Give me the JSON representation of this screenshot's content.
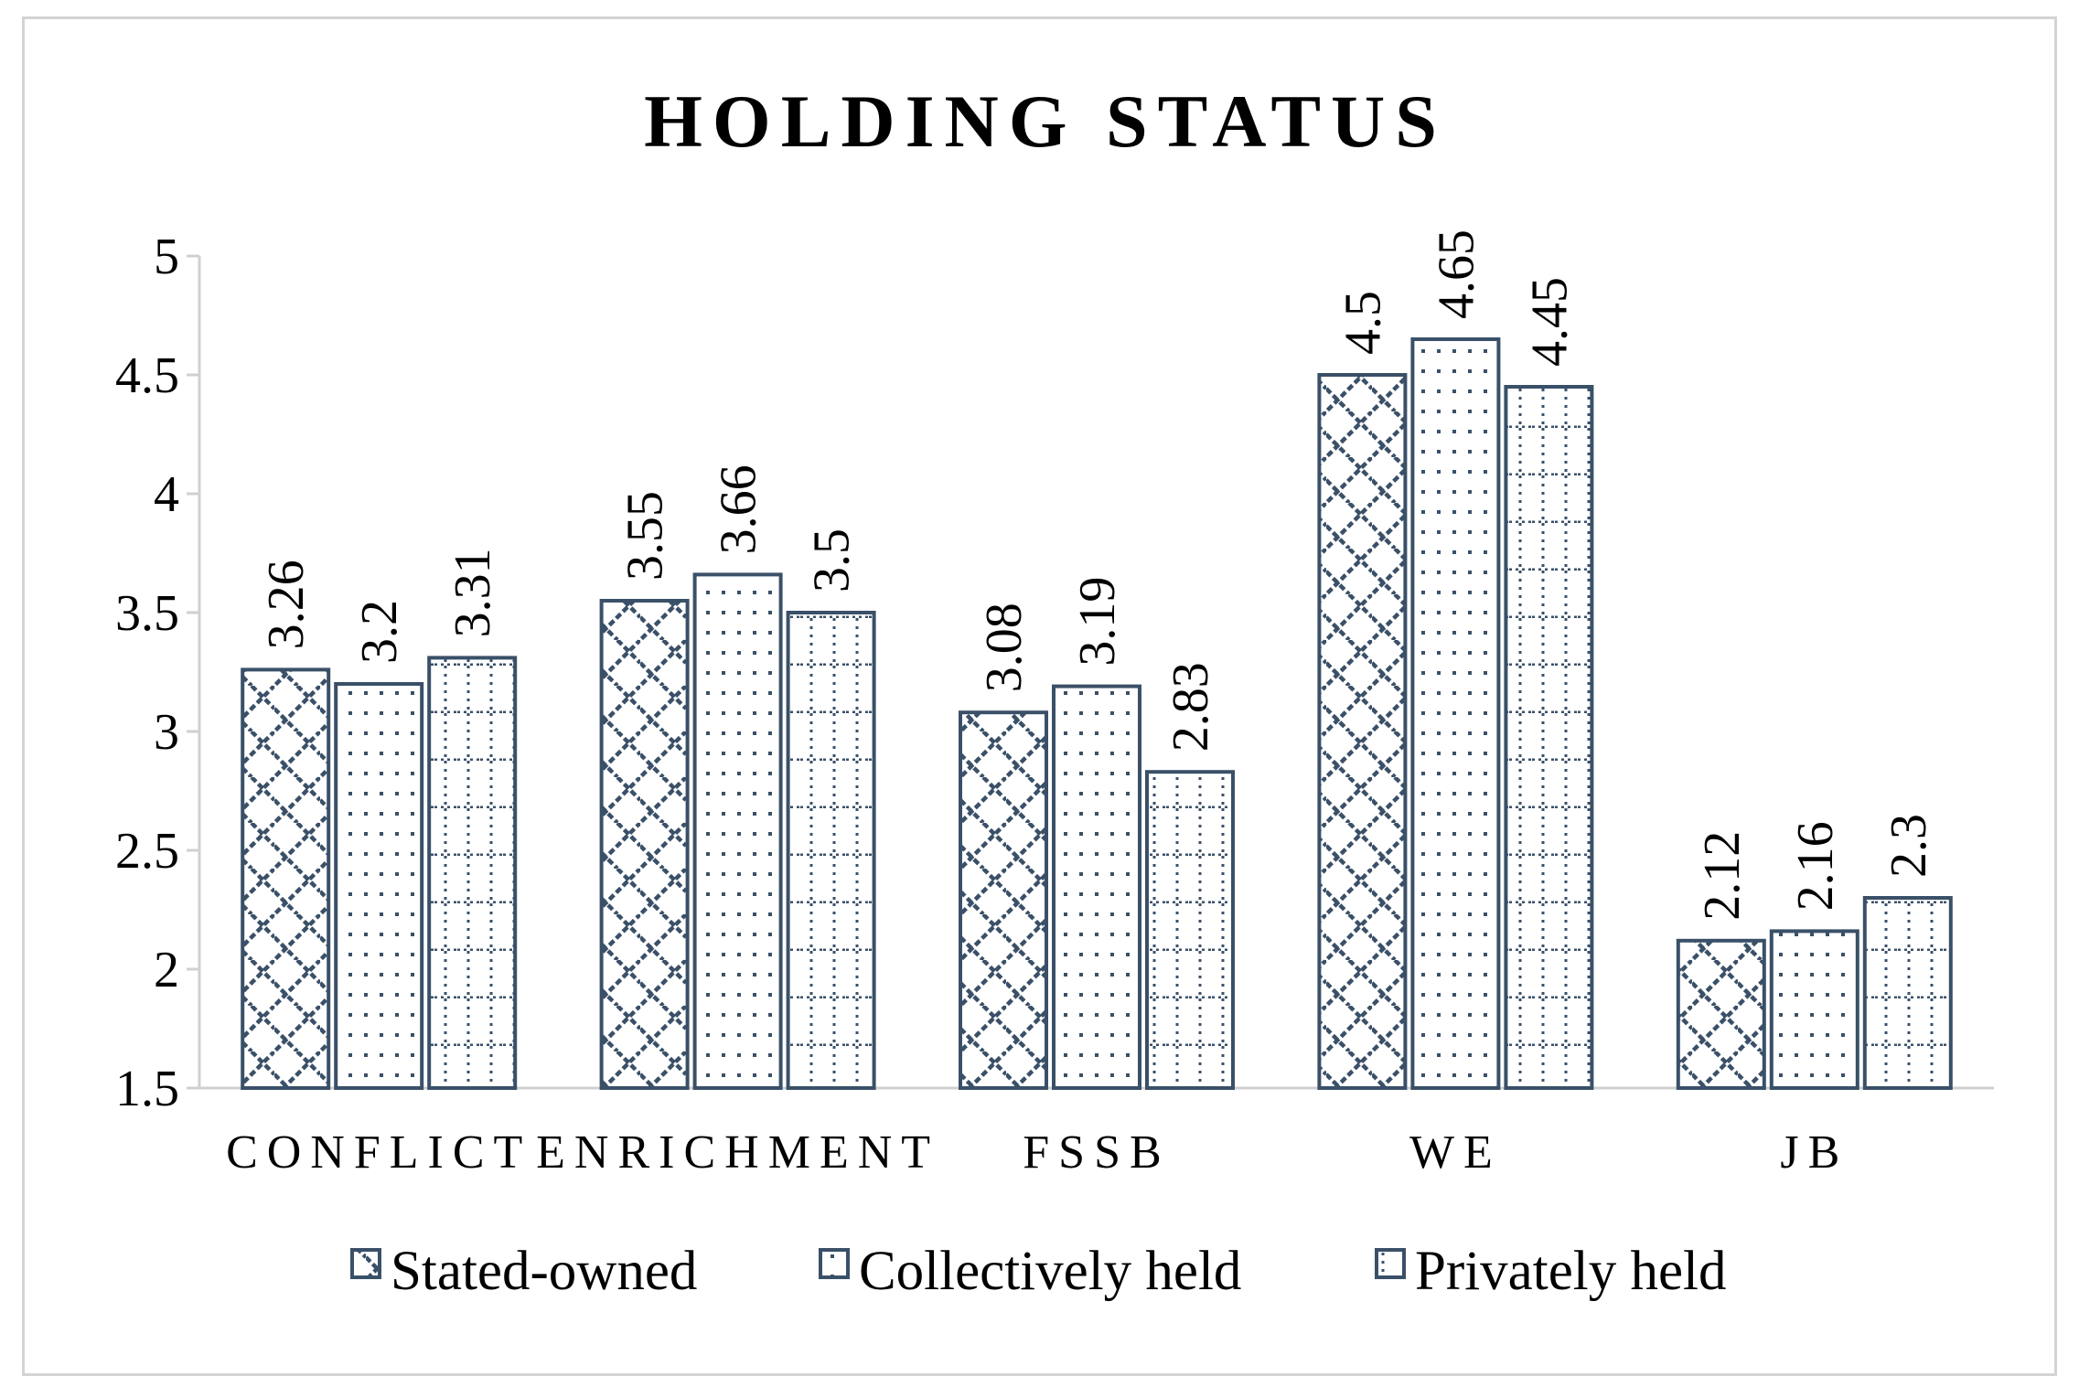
{
  "chart_data": {
    "type": "bar",
    "title": "HOLDING STATUS",
    "categories": [
      "CONFLICT",
      "ENRICHMENT",
      "FSSB",
      "WE",
      "JB"
    ],
    "series": [
      {
        "name": "Stated-owned",
        "values": [
          3.26,
          3.55,
          3.08,
          4.5,
          2.12
        ],
        "pattern": "diagonal-brick"
      },
      {
        "name": "Collectively held",
        "values": [
          3.2,
          3.66,
          3.19,
          4.65,
          2.16
        ],
        "pattern": "dotted"
      },
      {
        "name": "Privately held",
        "values": [
          3.31,
          3.5,
          2.83,
          4.45,
          2.3
        ],
        "pattern": "dotted-grid"
      }
    ],
    "ylim": [
      1.5,
      5
    ],
    "yticks": [
      1.5,
      2,
      2.5,
      3,
      3.5,
      4,
      4.5,
      5
    ],
    "ytick_labels": [
      "1.5",
      "2",
      "2.5",
      "3",
      "3.5",
      "4",
      "4.5",
      "5"
    ],
    "data_labels": [
      [
        "3.26",
        "3.55",
        "3.08",
        "4.5",
        "2.12"
      ],
      [
        "3.2",
        "3.66",
        "3.19",
        "4.65",
        "2.16"
      ],
      [
        "3.31",
        "3.5",
        "2.83",
        "4.45",
        "2.3"
      ]
    ],
    "data_labels_rotated": true,
    "grid": false,
    "legend_position": "bottom",
    "xlabel": "",
    "ylabel": "",
    "colors": {
      "bar_stroke": "#3a5068",
      "pattern": "#3a5068",
      "axis": "#d0d0d0",
      "frame": "#d4d4d4"
    }
  }
}
